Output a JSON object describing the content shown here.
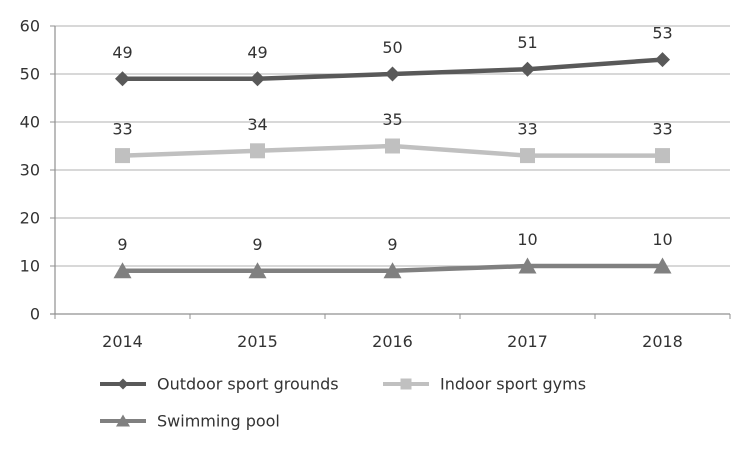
{
  "chart_data": {
    "type": "line",
    "title": "",
    "xlabel": "",
    "ylabel": "",
    "categories": [
      "2014",
      "2015",
      "2016",
      "2017",
      "2018"
    ],
    "series": [
      {
        "name": "Outdoor sport grounds",
        "values": [
          49,
          49,
          50,
          51,
          53
        ],
        "color": "#595959",
        "marker": "diamond"
      },
      {
        "name": "Indoor sport gyms",
        "values": [
          33,
          34,
          35,
          33,
          33
        ],
        "color": "#c0c0c0",
        "marker": "square"
      },
      {
        "name": "Swimming pool",
        "values": [
          9,
          9,
          9,
          10,
          10
        ],
        "color": "#808080",
        "marker": "triangle"
      }
    ],
    "data_labels_visible": true,
    "ylim": [
      0,
      60
    ],
    "ytick_step": 10,
    "ytick_labels": [
      "0",
      "10",
      "20",
      "30",
      "40",
      "50",
      "60"
    ],
    "grid": true,
    "legend_position": "bottom",
    "legend_columns": 2,
    "legend_entries": [
      "Outdoor sport grounds",
      "Indoor sport gyms",
      "Swimming pool"
    ],
    "colors": {
      "background": "#ffffff",
      "grid_line": "#b0b0b0",
      "axis_line": "#909090",
      "text": "#333333"
    }
  }
}
